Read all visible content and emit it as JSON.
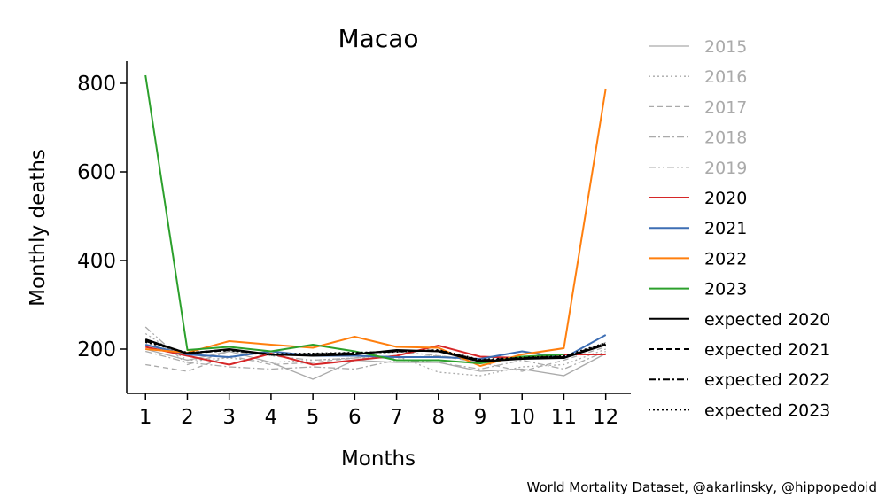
{
  "chart_data": {
    "type": "line",
    "title": "Macao",
    "xlabel": "Months",
    "ylabel": "Monthly deaths",
    "credit": "World Mortality Dataset, @akarlinsky, @hippopedoid",
    "x": [
      1,
      2,
      3,
      4,
      5,
      6,
      7,
      8,
      9,
      10,
      11,
      12
    ],
    "xticks": [
      "1",
      "2",
      "3",
      "4",
      "5",
      "6",
      "7",
      "8",
      "9",
      "10",
      "11",
      "12"
    ],
    "yticks": [
      200,
      400,
      600,
      800
    ],
    "ylim": [
      100,
      850
    ],
    "xlim": [
      0.55,
      12.6
    ],
    "grid": false,
    "legend_placement": "outside-right",
    "series": [
      {
        "name": "2015",
        "color": "#aaaaaa",
        "dash": "solid",
        "width": 1.3,
        "values": [
          200,
          175,
          195,
          170,
          132,
          175,
          170,
          170,
          150,
          155,
          140,
          190
        ]
      },
      {
        "name": "2016",
        "color": "#aaaaaa",
        "dash": "dotted",
        "width": 1.3,
        "values": [
          235,
          175,
          180,
          170,
          175,
          180,
          185,
          148,
          140,
          160,
          165,
          200
        ]
      },
      {
        "name": "2017",
        "color": "#aaaaaa",
        "dash": "dashed",
        "width": 1.3,
        "values": [
          165,
          150,
          185,
          165,
          170,
          180,
          180,
          185,
          170,
          150,
          175,
          205
        ]
      },
      {
        "name": "2018",
        "color": "#aaaaaa",
        "dash": "dashdot",
        "width": 1.3,
        "values": [
          195,
          170,
          160,
          155,
          160,
          155,
          175,
          170,
          155,
          175,
          155,
          195
        ]
      },
      {
        "name": "2019",
        "color": "#aaaaaa",
        "dash": "dashdotdot",
        "width": 1.3,
        "values": [
          250,
          165,
          195,
          185,
          175,
          180,
          195,
          185,
          175,
          180,
          180,
          215
        ]
      },
      {
        "name": "2020",
        "color": "#d62728",
        "dash": "solid",
        "width": 2,
        "values": [
          205,
          185,
          165,
          190,
          165,
          175,
          185,
          208,
          183,
          180,
          188,
          188
        ]
      },
      {
        "name": "2021",
        "color": "#3d6eb4",
        "dash": "solid",
        "width": 2,
        "values": [
          210,
          188,
          182,
          195,
          185,
          185,
          182,
          182,
          178,
          195,
          180,
          232
        ]
      },
      {
        "name": "2022",
        "color": "#ff7f0e",
        "dash": "solid",
        "width": 2,
        "values": [
          200,
          192,
          218,
          210,
          203,
          228,
          205,
          203,
          162,
          188,
          202,
          788
        ]
      },
      {
        "name": "2023",
        "color": "#2ca02c",
        "dash": "solid",
        "width": 2,
        "values": [
          818,
          198,
          205,
          195,
          210,
          195,
          175,
          175,
          168,
          183,
          188,
          null
        ]
      },
      {
        "name": "expected 2020",
        "color": "#000000",
        "dash": "solid",
        "width": 2,
        "values": [
          222,
          190,
          200,
          188,
          185,
          188,
          198,
          195,
          172,
          178,
          180,
          210
        ]
      },
      {
        "name": "expected 2021",
        "color": "#000000",
        "dash": "dashed",
        "width": 2,
        "values": [
          220,
          190,
          198,
          188,
          188,
          190,
          196,
          196,
          174,
          179,
          182,
          210
        ]
      },
      {
        "name": "expected 2022",
        "color": "#000000",
        "dash": "dashdot",
        "width": 2,
        "values": [
          218,
          191,
          199,
          187,
          189,
          191,
          195,
          197,
          175,
          180,
          183,
          212
        ]
      },
      {
        "name": "expected 2023",
        "color": "#000000",
        "dash": "dotted",
        "width": 2,
        "values": [
          216,
          192,
          197,
          189,
          190,
          192,
          194,
          198,
          176,
          181,
          184,
          214
        ]
      }
    ]
  }
}
